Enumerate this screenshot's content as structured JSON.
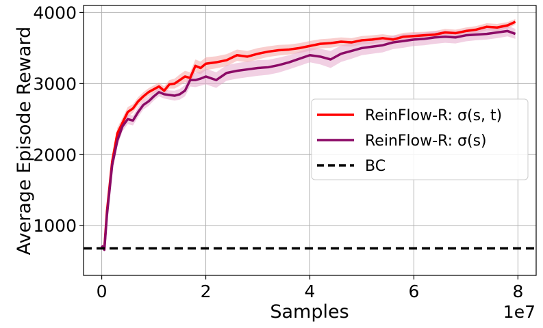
{
  "chart_data": {
    "type": "line",
    "xlabel": "Samples",
    "ylabel": "Average Episode Reward",
    "x_offset_label": "1e7",
    "xlim": [
      -0.35,
      8.35
    ],
    "ylim": [
      300,
      4100
    ],
    "x_ticks": [
      0,
      2,
      4,
      6,
      8
    ],
    "x_tick_labels": [
      "0",
      "2",
      "4",
      "6",
      "8"
    ],
    "y_ticks": [
      1000,
      2000,
      3000,
      4000
    ],
    "y_tick_labels": [
      "1000",
      "2000",
      "3000",
      "4000"
    ],
    "grid": true,
    "legend_position": "center-right",
    "baseline": {
      "name": "BC",
      "value": 680,
      "color": "#000000",
      "style": "dashed"
    },
    "series": [
      {
        "name": "ReinFlow-R: σ(s, t)",
        "color": "#ff0000",
        "band_color": "#f4a6a6",
        "x": [
          0.0,
          0.05,
          0.1,
          0.2,
          0.3,
          0.4,
          0.5,
          0.6,
          0.7,
          0.8,
          0.9,
          1.0,
          1.1,
          1.2,
          1.3,
          1.4,
          1.5,
          1.6,
          1.7,
          1.8,
          1.9,
          2.0,
          2.2,
          2.4,
          2.6,
          2.8,
          3.0,
          3.2,
          3.4,
          3.6,
          3.8,
          4.0,
          4.2,
          4.4,
          4.6,
          4.8,
          5.0,
          5.2,
          5.4,
          5.6,
          5.8,
          6.0,
          6.2,
          6.4,
          6.6,
          6.8,
          7.0,
          7.2,
          7.4,
          7.6,
          7.8,
          7.95
        ],
        "y": [
          700,
          680,
          1200,
          1900,
          2300,
          2450,
          2600,
          2650,
          2750,
          2820,
          2880,
          2920,
          2960,
          2900,
          2990,
          3000,
          3050,
          3100,
          3080,
          3250,
          3220,
          3280,
          3300,
          3330,
          3400,
          3380,
          3420,
          3450,
          3470,
          3480,
          3500,
          3530,
          3560,
          3570,
          3590,
          3580,
          3610,
          3620,
          3640,
          3620,
          3660,
          3670,
          3680,
          3690,
          3720,
          3710,
          3740,
          3760,
          3800,
          3790,
          3820,
          3870
        ],
        "band": [
          20,
          20,
          60,
          90,
          80,
          70,
          70,
          60,
          60,
          60,
          55,
          55,
          55,
          60,
          60,
          70,
          80,
          80,
          80,
          90,
          90,
          90,
          85,
          85,
          80,
          80,
          80,
          75,
          75,
          70,
          70,
          70,
          65,
          65,
          60,
          60,
          60,
          60,
          55,
          55,
          55,
          55,
          50,
          50,
          50,
          50,
          50,
          50,
          50,
          50,
          45,
          40
        ]
      },
      {
        "name": "ReinFlow-R: σ(s)",
        "color": "#8b0a66",
        "band_color": "#e5a9cc",
        "x": [
          0.0,
          0.05,
          0.1,
          0.2,
          0.3,
          0.4,
          0.5,
          0.6,
          0.7,
          0.8,
          0.9,
          1.0,
          1.1,
          1.2,
          1.3,
          1.4,
          1.5,
          1.6,
          1.7,
          1.8,
          1.9,
          2.0,
          2.2,
          2.4,
          2.6,
          2.8,
          3.0,
          3.2,
          3.4,
          3.6,
          3.8,
          4.0,
          4.2,
          4.4,
          4.6,
          4.8,
          5.0,
          5.2,
          5.4,
          5.6,
          5.8,
          6.0,
          6.2,
          6.4,
          6.6,
          6.8,
          7.0,
          7.2,
          7.4,
          7.6,
          7.8,
          7.95
        ],
        "y": [
          720,
          660,
          1150,
          1850,
          2200,
          2400,
          2500,
          2480,
          2600,
          2700,
          2750,
          2820,
          2880,
          2850,
          2840,
          2830,
          2850,
          2900,
          3050,
          3050,
          3070,
          3100,
          3050,
          3150,
          3180,
          3200,
          3220,
          3230,
          3260,
          3300,
          3350,
          3400,
          3380,
          3340,
          3420,
          3460,
          3500,
          3520,
          3540,
          3580,
          3600,
          3620,
          3630,
          3650,
          3660,
          3650,
          3680,
          3690,
          3700,
          3720,
          3740,
          3700
        ],
        "band": [
          20,
          20,
          60,
          90,
          80,
          70,
          70,
          70,
          70,
          65,
          65,
          60,
          60,
          60,
          65,
          70,
          75,
          80,
          90,
          100,
          100,
          110,
          110,
          110,
          110,
          110,
          110,
          105,
          105,
          100,
          100,
          100,
          110,
          120,
          115,
          110,
          100,
          100,
          100,
          95,
          95,
          90,
          90,
          90,
          85,
          85,
          85,
          80,
          80,
          80,
          75,
          70
        ]
      }
    ]
  }
}
